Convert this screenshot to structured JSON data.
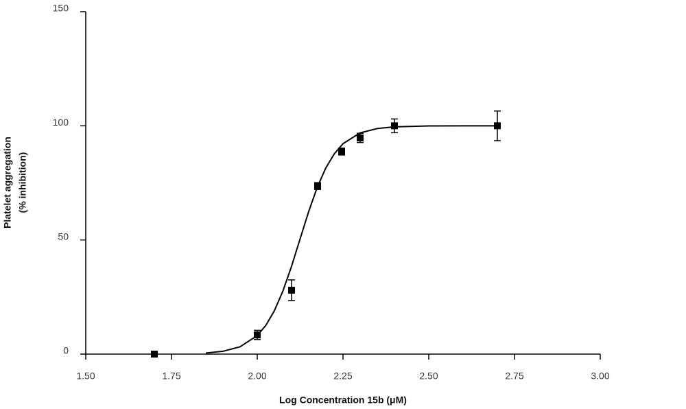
{
  "chart_data": {
    "type": "scatter",
    "x_label": "Log Concentration 15b (μM)",
    "y_label": [
      "Platelet aggregation",
      "(% inhibition)"
    ],
    "series": [
      {
        "x": [
          1.7,
          2.0,
          2.1,
          2.176,
          2.246,
          2.3,
          2.4,
          2.7
        ],
        "values": [
          0,
          8.4,
          28,
          73.6,
          88.7,
          94.7,
          100,
          100
        ],
        "errors": [
          0.5,
          2,
          4.5,
          1.5,
          1.5,
          2,
          3,
          6.5
        ],
        "color": "#000000"
      }
    ],
    "fit": {
      "x": [
        1.85,
        1.9,
        1.95,
        2.0,
        2.025,
        2.05,
        2.075,
        2.1,
        2.125,
        2.15,
        2.175,
        2.2,
        2.225,
        2.25,
        2.3,
        2.35,
        2.4,
        2.5,
        2.6,
        2.7
      ],
      "values": [
        0.47,
        1.23,
        3.21,
        8.12,
        12.6,
        19.03,
        27.7,
        38.47,
        50.5,
        62.46,
        73.1,
        81.57,
        87.8,
        92.17,
        96.91,
        98.81,
        99.55,
        99.94,
        99.99,
        100
      ],
      "color": "#000000"
    },
    "xlim": [
      1.5,
      3.0
    ],
    "xticks": [
      {
        "value": 1.5,
        "label": "1.50"
      },
      {
        "value": 1.75,
        "label": "1.75"
      },
      {
        "value": 2.0,
        "label": "2.00"
      },
      {
        "value": 2.25,
        "label": "2.25"
      },
      {
        "value": 2.5,
        "label": "2.50"
      },
      {
        "value": 2.75,
        "label": "2.75"
      },
      {
        "value": 3.0,
        "label": "3.00"
      }
    ],
    "ylim": [
      0,
      150
    ],
    "yticks": [
      0,
      50,
      100,
      150
    ]
  }
}
